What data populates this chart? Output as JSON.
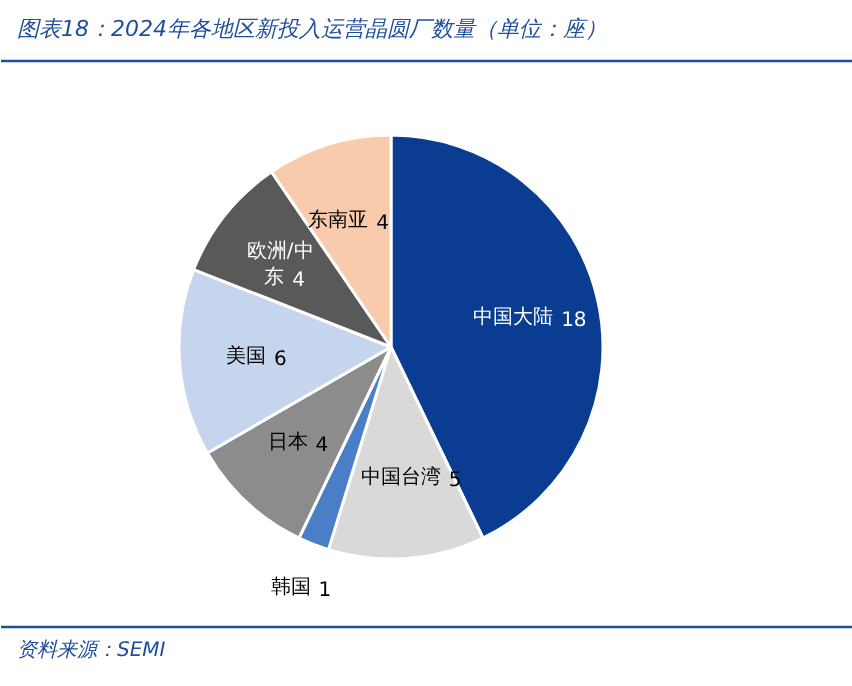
{
  "chart_data": {
    "type": "pie",
    "title": "图表18：2024年各地区新投入运营晶圆厂数量（单位：座）",
    "categories": [
      "中国大陆",
      "中国台湾",
      "韩国",
      "日本",
      "美国",
      "欧洲/中东",
      "东南亚"
    ],
    "values": [
      18,
      5,
      1,
      4,
      6,
      4,
      4
    ],
    "colors": [
      "#0a3d91",
      "#d9d9d9",
      "#4a7fc7",
      "#8c8c8c",
      "#c5d5ee",
      "#595959",
      "#f8cbad"
    ],
    "data_labels": true,
    "annotations": [
      "资料来源：SEMI"
    ]
  }
}
